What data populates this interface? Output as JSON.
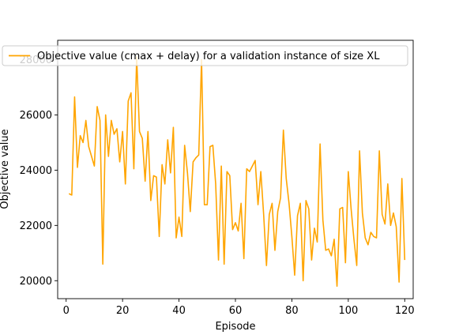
{
  "chart_data": {
    "type": "line",
    "title": "",
    "xlabel": "Episode",
    "ylabel": "Objective value",
    "xlim": [
      -3,
      123
    ],
    "ylim": [
      19350,
      28700
    ],
    "xticks": [
      0,
      20,
      40,
      60,
      80,
      100,
      120
    ],
    "yticks": [
      20000,
      22000,
      24000,
      26000,
      28000
    ],
    "grid": false,
    "legend_position": "top-right",
    "series": [
      {
        "name": "Objective value (cmax + delay) for a validation instance of size XL",
        "color": "#ffa500",
        "x": [
          1,
          2,
          3,
          4,
          5,
          6,
          7,
          8,
          9,
          10,
          11,
          12,
          13,
          14,
          15,
          16,
          17,
          18,
          19,
          20,
          21,
          22,
          23,
          24,
          25,
          26,
          27,
          28,
          29,
          30,
          31,
          32,
          33,
          34,
          35,
          36,
          37,
          38,
          39,
          40,
          41,
          42,
          43,
          44,
          45,
          46,
          47,
          48,
          49,
          50,
          51,
          52,
          53,
          54,
          55,
          56,
          57,
          58,
          59,
          60,
          61,
          62,
          63,
          64,
          65,
          66,
          67,
          68,
          69,
          70,
          71,
          72,
          73,
          74,
          75,
          76,
          77,
          78,
          79,
          80,
          81,
          82,
          83,
          84,
          85,
          86,
          87,
          88,
          89,
          90,
          91,
          92,
          93,
          94,
          95,
          96,
          97,
          98,
          99,
          100,
          101,
          102,
          103,
          104,
          105,
          106,
          107,
          108,
          109,
          110,
          111,
          112,
          113,
          114,
          115,
          116,
          117,
          118,
          119,
          120
        ],
        "y": [
          23150,
          23100,
          26650,
          24100,
          25250,
          25000,
          25800,
          24850,
          24500,
          24150,
          26300,
          25800,
          20600,
          26000,
          24500,
          25800,
          25300,
          25500,
          24300,
          25400,
          23500,
          26500,
          26800,
          24050,
          28100,
          25400,
          25150,
          23600,
          25400,
          22900,
          23800,
          23750,
          21600,
          24200,
          23500,
          25100,
          23900,
          25550,
          21550,
          22300,
          21600,
          24900,
          23900,
          22500,
          24300,
          24450,
          24550,
          28000,
          22750,
          22750,
          24850,
          24900,
          23500,
          20750,
          24150,
          20600,
          23950,
          23800,
          21850,
          22100,
          21800,
          22800,
          20800,
          24050,
          23950,
          24150,
          24350,
          22750,
          23950,
          22400,
          20550,
          22400,
          22800,
          21100,
          22500,
          23000,
          25450,
          23700,
          22800,
          21600,
          20200,
          22350,
          22800,
          20000,
          22900,
          22600,
          20750,
          21900,
          21400,
          24950,
          22200,
          21100,
          21150,
          20900,
          21500,
          19800,
          22600,
          22650,
          20650,
          23950,
          22600,
          21500,
          20550,
          24700,
          22450,
          21550,
          21300,
          21750,
          21600,
          21550,
          24700,
          22400,
          22050,
          23500,
          22000,
          22450,
          21950,
          19950,
          23700,
          20750
        ]
      }
    ]
  }
}
